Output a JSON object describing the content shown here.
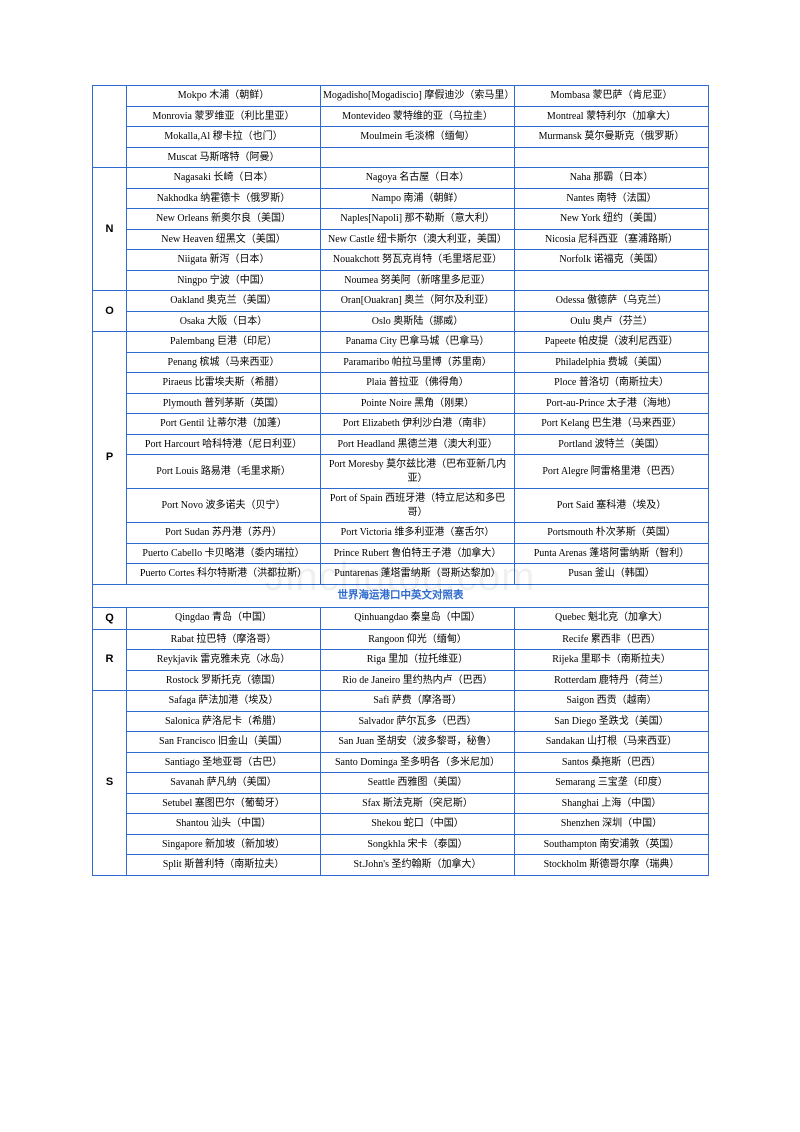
{
  "watermark_text": "Jinchutou.com",
  "title_text": "世界海运港口中英文对照表",
  "colors": {
    "border": "#2f6bce",
    "title": "#2f6bce",
    "text": "#000000",
    "background": "#ffffff"
  },
  "rows": [
    {
      "type": "data",
      "letter": "",
      "letter_rowspan": 4,
      "cells": [
        "Mokpo 木浦（朝鲜）",
        "Mogadisho[Mogadiscio] 摩假迪沙（索马里）",
        "Mombasa 蒙巴萨（肯尼亚）"
      ]
    },
    {
      "type": "data",
      "cells": [
        "Monrovia 蒙罗维亚（利比里亚）",
        "Montevideo 蒙特维的亚（乌拉圭）",
        "Montreal 蒙特利尔（加拿大）"
      ]
    },
    {
      "type": "data",
      "cells": [
        "Mokalla,Al 穆卡拉（也门）",
        "Moulmein 毛淡棉（缅甸）",
        "Murmansk 莫尔曼斯克（俄罗斯）"
      ]
    },
    {
      "type": "data",
      "cells": [
        "Muscat 马斯喀特（阿曼）",
        "",
        ""
      ]
    },
    {
      "type": "data",
      "letter": "N",
      "letter_rowspan": 6,
      "cells": [
        "Nagasaki 长崎（日本）",
        "Nagoya 名古屋（日本）",
        "Naha 那霸（日本）"
      ]
    },
    {
      "type": "data",
      "cells": [
        "Nakhodka 纳霍德卡（俄罗斯）",
        "Nampo 南浦（朝鲜）",
        "Nantes 南特（法国）"
      ]
    },
    {
      "type": "data",
      "cells": [
        "New Orleans 新奥尔良（美国）",
        "Naples[Napoli] 那不勒斯（意大利）",
        "New York 纽约（美国）"
      ]
    },
    {
      "type": "data",
      "cells": [
        "New Heaven 纽黑文（美国）",
        "New Castle 纽卡斯尔（澳大利亚，美国）",
        "Nicosia 尼科西亚（塞浦路斯）"
      ]
    },
    {
      "type": "data",
      "cells": [
        "Niigata 新泻（日本）",
        "Nouakchott 努瓦克肖特（毛里塔尼亚）",
        "Norfolk 诺福克（美国）"
      ]
    },
    {
      "type": "data",
      "cells": [
        "Ningpo 宁波（中国）",
        "Noumea 努美阿（新喀里多尼亚）",
        ""
      ]
    },
    {
      "type": "data",
      "letter": "O",
      "letter_rowspan": 2,
      "cells": [
        "Oakland 奥克兰（美国）",
        "Oran[Ouakran] 奥兰（阿尔及利亚）",
        "Odessa 傲德萨（乌克兰）"
      ]
    },
    {
      "type": "data",
      "cells": [
        "Osaka 大阪（日本）",
        "Oslo 奥斯陆（挪威）",
        "Oulu 奥卢（芬兰）"
      ]
    },
    {
      "type": "data",
      "letter": "P",
      "letter_rowspan": 11,
      "cells": [
        "Palembang 巨港（印尼）",
        "Panama City 巴拿马城（巴拿马）",
        "Papeete 帕皮提（波利尼西亚）"
      ]
    },
    {
      "type": "data",
      "cells": [
        "Penang 槟城（马来西亚）",
        "Paramaribo 帕拉马里博（苏里南）",
        "Philadelphia 费城（美国）"
      ]
    },
    {
      "type": "data",
      "cells": [
        "Piraeus 比雷埃夫斯（希腊）",
        "Plaia 普拉亚（佛得角）",
        "Ploce 普洛切（南斯拉夫）"
      ]
    },
    {
      "type": "data",
      "cells": [
        "Plymouth 普列茅斯（英国）",
        "Pointe Noire 黑角（刚果）",
        "Port-au-Prince 太子港（海地）"
      ]
    },
    {
      "type": "data",
      "cells": [
        "Port Gentil 让蒂尔港（加蓬）",
        "Port Elizabeth 伊利沙白港（南非）",
        "Port Kelang 巴生港（马来西亚）"
      ]
    },
    {
      "type": "data",
      "cells": [
        "Port Harcourt 哈科特港（尼日利亚）",
        "Port Headland 黑德兰港（澳大利亚）",
        "Portland 波特兰（美国）"
      ]
    },
    {
      "type": "data",
      "cells": [
        "Port Louis 路易港（毛里求斯）",
        "Port Moresby 莫尔兹比港（巴布亚新几内亚）",
        "Port Alegre 阿雷格里港（巴西）"
      ]
    },
    {
      "type": "data",
      "cells": [
        "Port Novo 波多诺夫（贝宁）",
        "Port of Spain 西班牙港（特立尼达和多巴哥）",
        "Port Said 塞科港（埃及）"
      ]
    },
    {
      "type": "data",
      "cells": [
        "Port Sudan 苏丹港（苏丹）",
        "Port Victoria 维多利亚港（塞舌尔）",
        "Portsmouth 朴次茅斯（英国）"
      ]
    },
    {
      "type": "data",
      "cells": [
        "Puerto Cabello 卡贝略港（委内瑞拉）",
        "Prince Rubert 鲁伯特王子港（加拿大）",
        "Punta Arenas 蓬塔阿雷纳斯（智利）"
      ]
    },
    {
      "type": "data",
      "cells": [
        "Puerto Cortes 科尔特斯港（洪都拉斯）",
        "Puntarenas 蓬塔雷纳斯（哥斯达黎加）",
        "Pusan 釜山（韩国）"
      ]
    },
    {
      "type": "title"
    },
    {
      "type": "data",
      "letter": "Q",
      "letter_rowspan": 1,
      "cells": [
        "Qingdao 青岛（中国）",
        "Qinhuangdao 秦皇岛（中国）",
        "Quebec 魁北克（加拿大）"
      ]
    },
    {
      "type": "data",
      "letter": "R",
      "letter_rowspan": 3,
      "cells": [
        "Rabat 拉巴特（摩洛哥）",
        "Rangoon 仰光（缅甸）",
        "Recife 累西非（巴西）"
      ]
    },
    {
      "type": "data",
      "cells": [
        "Reykjavik 雷克雅未克（冰岛）",
        "Riga 里加（拉托维亚）",
        "Rijeka 里耶卡（南斯拉夫）"
      ]
    },
    {
      "type": "data",
      "cells": [
        "Rostock 罗斯托克（德国）",
        "Rio de Janeiro 里约热内卢（巴西）",
        "Rotterdam 鹿特丹（荷兰）"
      ]
    },
    {
      "type": "data",
      "letter": "S",
      "letter_rowspan": 9,
      "cells": [
        "Safaga 萨法加港（埃及）",
        "Safi 萨费（摩洛哥）",
        "Saigon 西贡（越南）"
      ]
    },
    {
      "type": "data",
      "cells": [
        "Salonica 萨洛尼卡（希腊）",
        "Salvador 萨尔瓦多（巴西）",
        "San Diego 圣跌戈（美国）"
      ]
    },
    {
      "type": "data",
      "cells": [
        "San Francisco 旧金山（美国）",
        "San Juan 圣胡安（波多黎哥，秘鲁）",
        "Sandakan 山打根（马来西亚）"
      ]
    },
    {
      "type": "data",
      "cells": [
        "Santiago 圣地亚哥（古巴）",
        "Santo Dominga 圣多明各（多米尼加）",
        "Santos 桑拖斯（巴西）"
      ]
    },
    {
      "type": "data",
      "cells": [
        "Savanah 萨凡纳（美国）",
        "Seattle 西雅图（美国）",
        "Semarang 三宝垄（印度）"
      ]
    },
    {
      "type": "data",
      "cells": [
        "Setubel 塞图巴尔（葡萄牙）",
        "Sfax 斯法克斯（突尼斯）",
        "Shanghai 上海（中国）"
      ]
    },
    {
      "type": "data",
      "cells": [
        "Shantou 汕头（中国）",
        "Shekou 蛇口（中国）",
        "Shenzhen 深圳（中国）"
      ]
    },
    {
      "type": "data",
      "cells": [
        "Singapore 新加坡（新加坡）",
        "Songkhla 宋卡（泰国）",
        "Southampton 南安浦敦（英国）"
      ]
    },
    {
      "type": "data",
      "cells": [
        "Split 斯普利特（南斯拉夫）",
        "St.John's 圣约翰斯（加拿大）",
        "Stockholm 斯德哥尔摩（瑞典）"
      ]
    }
  ]
}
